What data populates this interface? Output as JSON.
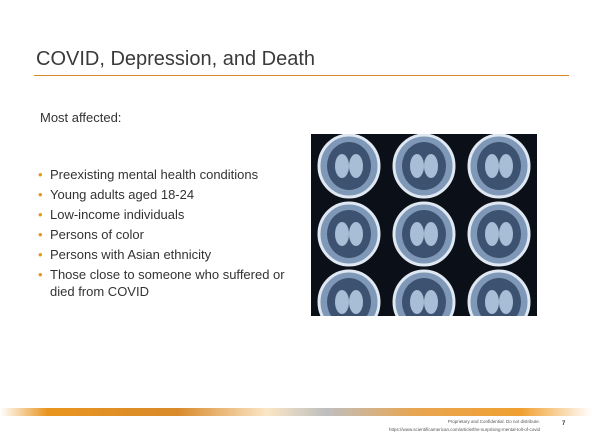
{
  "title": "COVID, Depression, and Death",
  "intro": "Most affected:",
  "bullets": [
    "Preexisting mental health conditions",
    "Young adults aged 18-24",
    "Low-income individuals",
    "Persons of color",
    "Persons with Asian ethnicity",
    "Those close to someone who suffered or died from COVID"
  ],
  "footer": {
    "confidential": "Proprietary and Confidential. Do not distribute.",
    "source": "https://www.scientificamerican.com/article/the-surprising-mental-toll-of-covid",
    "page": "7"
  }
}
